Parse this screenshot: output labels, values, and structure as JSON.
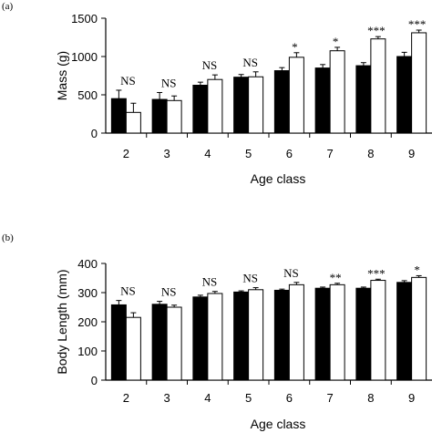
{
  "chart_data": [
    {
      "type": "bar",
      "panel_label": "(a)",
      "categories": [
        "2",
        "3",
        "4",
        "5",
        "6",
        "7",
        "8",
        "9"
      ],
      "xlabel": "Age class",
      "ylabel": "Mass (g)",
      "ylim": [
        0,
        1500
      ],
      "yticks": [
        0,
        500,
        1000,
        1500
      ],
      "grid": false,
      "series": [
        {
          "fill": "#000000",
          "values": [
            450,
            440,
            625,
            730,
            815,
            850,
            880,
            1000
          ],
          "errors": [
            110,
            90,
            40,
            35,
            40,
            45,
            40,
            55
          ]
        },
        {
          "fill": "#ffffff",
          "values": [
            270,
            425,
            700,
            735,
            990,
            1075,
            1230,
            1310
          ],
          "errors": [
            120,
            60,
            60,
            65,
            60,
            45,
            30,
            35
          ]
        }
      ],
      "annotations": [
        "NS",
        "NS",
        "NS",
        "NS",
        "*",
        "*",
        "***",
        "***"
      ]
    },
    {
      "type": "bar",
      "panel_label": "(b)",
      "categories": [
        "2",
        "3",
        "4",
        "5",
        "6",
        "7",
        "8",
        "9"
      ],
      "xlabel": "Age class",
      "ylabel": "Body Length (mm)",
      "ylim": [
        0,
        400
      ],
      "yticks": [
        0,
        100,
        200,
        300,
        400
      ],
      "grid": false,
      "series": [
        {
          "fill": "#000000",
          "values": [
            258,
            260,
            285,
            302,
            308,
            315,
            315,
            335
          ],
          "errors": [
            15,
            10,
            6,
            4,
            4,
            4,
            4,
            6
          ]
        },
        {
          "fill": "#ffffff",
          "values": [
            215,
            250,
            297,
            310,
            327,
            327,
            342,
            352
          ],
          "errors": [
            16,
            7,
            7,
            7,
            8,
            5,
            4,
            6
          ]
        }
      ],
      "annotations": [
        "NS",
        "NS",
        "NS",
        "NS",
        "NS",
        "**",
        "***",
        "*"
      ]
    }
  ]
}
